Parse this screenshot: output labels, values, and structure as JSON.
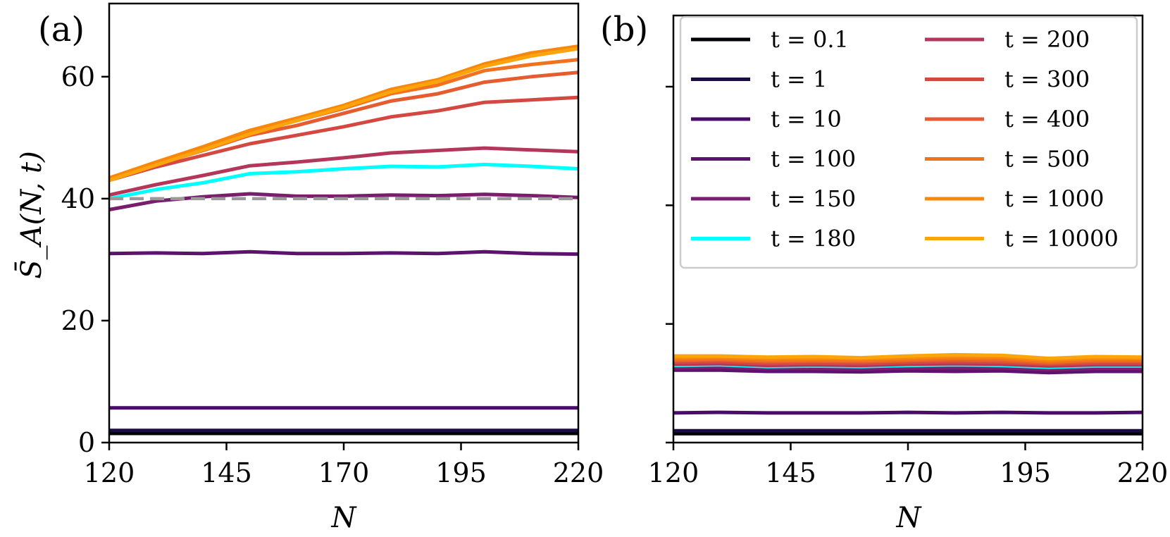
{
  "panel_labels": [
    "(a)",
    "(b)"
  ],
  "chart_data": [
    {
      "type": "line",
      "panel": "(a)",
      "xlabel": "N",
      "ylabel": "S̄_A(N, t)",
      "xlim": [
        120,
        220
      ],
      "ylim": [
        0,
        72
      ],
      "xticks": [
        120,
        145,
        170,
        195,
        220
      ],
      "yticks": [
        0,
        20,
        40,
        60
      ],
      "grid": false,
      "x": [
        120,
        130,
        140,
        150,
        160,
        170,
        180,
        190,
        200,
        210,
        220
      ],
      "reference_line": {
        "y": 40,
        "style": "dashed",
        "color": "#9a9a9a"
      },
      "series": [
        {
          "name": "t = 0.1",
          "color": "#000004",
          "values": [
            1.5,
            1.5,
            1.5,
            1.5,
            1.5,
            1.5,
            1.5,
            1.5,
            1.5,
            1.5,
            1.5
          ]
        },
        {
          "name": "t = 1",
          "color": "#1b0c41",
          "values": [
            2.0,
            2.0,
            2.0,
            2.0,
            2.0,
            2.0,
            2.0,
            2.0,
            2.0,
            2.0,
            2.0
          ]
        },
        {
          "name": "t = 10",
          "color": "#4a0c6b",
          "values": [
            5.7,
            5.7,
            5.7,
            5.7,
            5.7,
            5.7,
            5.7,
            5.7,
            5.7,
            5.7,
            5.7
          ]
        },
        {
          "name": "t = 100",
          "color": "#5c126e",
          "values": [
            31.0,
            31.1,
            31.0,
            31.3,
            31.0,
            31.0,
            31.1,
            31.0,
            31.3,
            31.0,
            30.9
          ]
        },
        {
          "name": "t = 150",
          "color": "#7a1d6d",
          "values": [
            38.2,
            39.6,
            40.3,
            40.8,
            40.4,
            40.4,
            40.6,
            40.5,
            40.7,
            40.5,
            40.2
          ]
        },
        {
          "name": "t = 180",
          "color": "#00ffff",
          "values": [
            40.0,
            41.5,
            42.6,
            44.1,
            44.4,
            44.9,
            45.3,
            45.2,
            45.6,
            45.3,
            44.9
          ]
        },
        {
          "name": "t = 200",
          "color": "#b5365b",
          "values": [
            40.6,
            42.3,
            43.8,
            45.4,
            46.0,
            46.7,
            47.5,
            47.9,
            48.3,
            48.0,
            47.7
          ]
        },
        {
          "name": "t = 300",
          "color": "#d44842",
          "values": [
            43.0,
            45.2,
            47.1,
            49.0,
            50.4,
            51.8,
            53.4,
            54.4,
            55.8,
            56.2,
            56.6
          ]
        },
        {
          "name": "t = 400",
          "color": "#e55c30",
          "values": [
            43.3,
            45.6,
            47.9,
            50.4,
            52.0,
            54.0,
            56.0,
            57.2,
            59.1,
            60.0,
            60.7
          ]
        },
        {
          "name": "t = 500",
          "color": "#f1711f",
          "values": [
            43.3,
            45.8,
            48.2,
            50.8,
            52.8,
            54.8,
            57.2,
            58.6,
            61.0,
            62.0,
            62.8
          ]
        },
        {
          "name": "t = 1000",
          "color": "#f8870e",
          "values": [
            43.4,
            46.0,
            48.5,
            51.2,
            53.2,
            55.3,
            57.9,
            59.5,
            62.1,
            63.9,
            65.0
          ]
        },
        {
          "name": "t = 10000",
          "color": "#fca50a",
          "values": [
            43.0,
            45.5,
            48.0,
            50.6,
            52.8,
            55.0,
            57.5,
            59.2,
            61.7,
            63.4,
            64.6
          ]
        }
      ]
    },
    {
      "type": "line",
      "panel": "(b)",
      "xlabel": "N",
      "xlim": [
        120,
        220
      ],
      "ylim": [
        0,
        72
      ],
      "xticks": [
        120,
        145,
        170,
        195,
        220
      ],
      "yticks": [
        0,
        20,
        40,
        60
      ],
      "grid": false,
      "legend_position": "top",
      "x": [
        120,
        130,
        140,
        150,
        160,
        170,
        180,
        190,
        200,
        210,
        220
      ],
      "series": [
        {
          "name": "t = 0.1",
          "color": "#000004",
          "values": [
            1.5,
            1.5,
            1.5,
            1.5,
            1.5,
            1.5,
            1.5,
            1.5,
            1.5,
            1.5,
            1.5
          ]
        },
        {
          "name": "t = 1",
          "color": "#1b0c41",
          "values": [
            2.0,
            2.0,
            2.0,
            2.0,
            2.0,
            2.0,
            2.0,
            2.0,
            2.0,
            2.0,
            2.0
          ]
        },
        {
          "name": "t = 10",
          "color": "#4a0c6b",
          "values": [
            5.0,
            5.1,
            5.0,
            5.0,
            5.0,
            5.1,
            5.0,
            5.1,
            5.0,
            5.0,
            5.1
          ]
        },
        {
          "name": "t = 100",
          "color": "#5c126e",
          "values": [
            12.2,
            12.2,
            12.0,
            12.0,
            11.9,
            12.1,
            12.0,
            12.1,
            11.8,
            12.0,
            12.0
          ]
        },
        {
          "name": "t = 150",
          "color": "#7a1d6d",
          "values": [
            12.6,
            12.7,
            12.5,
            12.5,
            12.4,
            12.6,
            12.6,
            12.6,
            12.3,
            12.5,
            12.5
          ]
        },
        {
          "name": "t = 180",
          "color": "#00ffff",
          "values": [
            13.0,
            13.1,
            12.8,
            12.9,
            12.8,
            13.0,
            13.1,
            13.0,
            12.7,
            12.9,
            12.9
          ]
        },
        {
          "name": "t = 200",
          "color": "#b5365b",
          "values": [
            13.2,
            13.3,
            13.0,
            13.1,
            13.0,
            13.2,
            13.3,
            13.2,
            12.9,
            13.1,
            13.1
          ]
        },
        {
          "name": "t = 300",
          "color": "#d44842",
          "values": [
            13.5,
            13.6,
            13.3,
            13.4,
            13.3,
            13.5,
            13.6,
            13.5,
            13.2,
            13.4,
            13.4
          ]
        },
        {
          "name": "t = 400",
          "color": "#e55c30",
          "values": [
            13.8,
            13.9,
            13.6,
            13.7,
            13.6,
            13.8,
            13.9,
            13.8,
            13.4,
            13.7,
            13.7
          ]
        },
        {
          "name": "t = 500",
          "color": "#f1711f",
          "values": [
            14.0,
            14.1,
            13.8,
            13.9,
            13.8,
            14.0,
            14.2,
            14.1,
            13.6,
            13.9,
            13.9
          ]
        },
        {
          "name": "t = 1000",
          "color": "#f8870e",
          "values": [
            14.3,
            14.4,
            14.1,
            14.2,
            14.1,
            14.3,
            14.5,
            14.4,
            13.9,
            14.2,
            14.2
          ]
        },
        {
          "name": "t = 10000",
          "color": "#fca50a",
          "values": [
            14.6,
            14.6,
            14.4,
            14.5,
            14.3,
            14.6,
            14.8,
            14.7,
            14.2,
            14.5,
            14.4
          ]
        }
      ]
    }
  ]
}
